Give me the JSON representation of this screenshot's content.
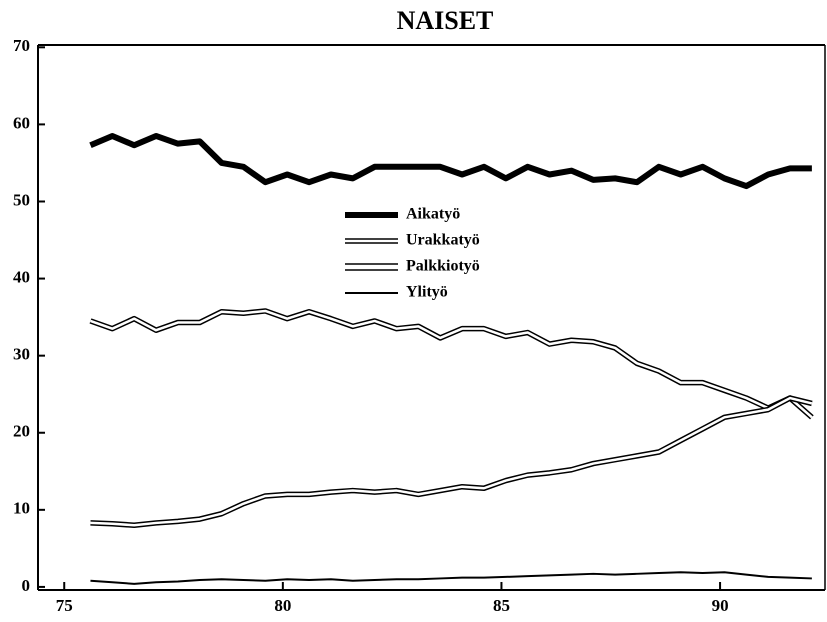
{
  "chart_data": {
    "type": "line",
    "title": "NAISET",
    "x": [
      75.6,
      76.1,
      76.6,
      77.1,
      77.6,
      78.1,
      78.6,
      79.1,
      79.6,
      80.1,
      80.6,
      81.1,
      81.6,
      82.1,
      82.6,
      83.1,
      83.6,
      84.1,
      84.6,
      85.1,
      85.6,
      86.1,
      86.6,
      87.1,
      87.6,
      88.1,
      88.6,
      89.1,
      89.6,
      90.1,
      90.6,
      91.1,
      91.6,
      92.1
    ],
    "xlim": [
      74.4,
      92.4
    ],
    "xticks": [
      75,
      80,
      85,
      90
    ],
    "ylim": [
      -0.4,
      70.3
    ],
    "yticks": [
      0,
      10,
      20,
      30,
      40,
      50,
      60,
      70
    ],
    "series": [
      {
        "name": "Aikatyö",
        "color": "#000000",
        "style": "thick",
        "values": [
          57.3,
          58.5,
          57.3,
          58.5,
          57.5,
          57.8,
          55,
          54.5,
          52.5,
          53.5,
          52.5,
          53.5,
          53,
          54.5,
          54.5,
          54.5,
          54.5,
          53.5,
          54.5,
          53,
          54.5,
          53.5,
          54,
          52.8,
          53,
          52.5,
          54.5,
          53.5,
          54.5,
          53,
          52,
          53.5,
          54.3,
          54.3
        ]
      },
      {
        "name": "Urakkatyö",
        "color": "#000000",
        "style": "double",
        "values": [
          34.5,
          33.5,
          34.8,
          33.3,
          34.3,
          34.3,
          35.7,
          35.5,
          35.8,
          34.8,
          35.7,
          34.8,
          33.8,
          34.5,
          33.5,
          33.8,
          32.3,
          33.5,
          33.5,
          32.5,
          33,
          31.5,
          32,
          31.8,
          31,
          29,
          28,
          26.5,
          26.5,
          25.5,
          24.5,
          23.2,
          24.5,
          22
        ]
      },
      {
        "name": "Palkkiotyö",
        "color": "#000000",
        "style": "double",
        "values": [
          8.3,
          8.2,
          8,
          8.3,
          8.5,
          8.8,
          9.5,
          10.8,
          11.8,
          12,
          12,
          12.3,
          12.5,
          12.3,
          12.5,
          12,
          12.5,
          13,
          12.8,
          13.8,
          14.5,
          14.8,
          15.2,
          16,
          16.5,
          17,
          17.5,
          19,
          20.5,
          22,
          22.5,
          23,
          24.5,
          23.8
        ]
      },
      {
        "name": "Ylityö",
        "color": "#000000",
        "style": "thin",
        "values": [
          0.8,
          0.6,
          0.4,
          0.6,
          0.7,
          0.9,
          1,
          0.9,
          0.8,
          1,
          0.9,
          1,
          0.8,
          0.9,
          1,
          1,
          1.1,
          1.2,
          1.2,
          1.3,
          1.4,
          1.5,
          1.6,
          1.7,
          1.6,
          1.7,
          1.8,
          1.9,
          1.8,
          1.9,
          1.6,
          1.3,
          1.2,
          1.1
        ]
      }
    ]
  }
}
